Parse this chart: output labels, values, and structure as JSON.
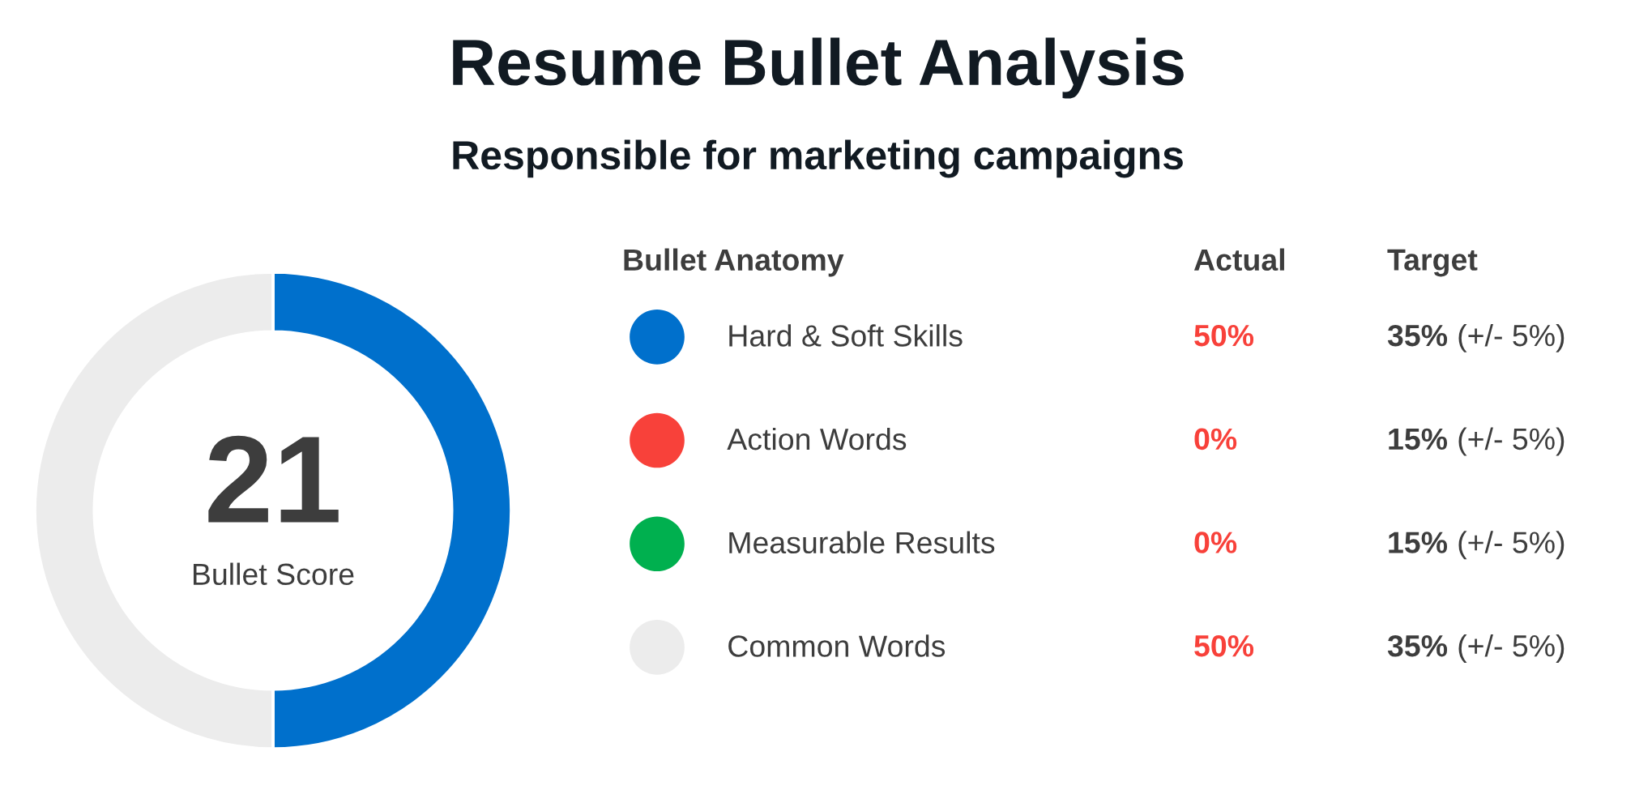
{
  "chart_data": {
    "type": "donut",
    "title": "Resume Bullet Analysis",
    "subtitle": "Responsible for marketing campaigns",
    "categories": [
      "Hard & Soft Skills",
      "Action Words",
      "Measurable Results",
      "Common Words"
    ],
    "values": [
      50,
      0,
      0,
      50
    ],
    "colors": [
      "#0070cc",
      "#f8413a",
      "#00b04f",
      "#ececec"
    ],
    "value_labels": [
      "50%",
      "0%",
      "0%",
      "50%"
    ],
    "legend": "right",
    "annotations": [
      "21",
      "Bullet Score",
      "Bullet Anatomy",
      "Actual",
      "Target",
      "35% (+/- 5%)",
      "15% (+/- 5%)",
      "15% (+/- 5%)",
      "35% (+/- 5%)"
    ]
  }
}
